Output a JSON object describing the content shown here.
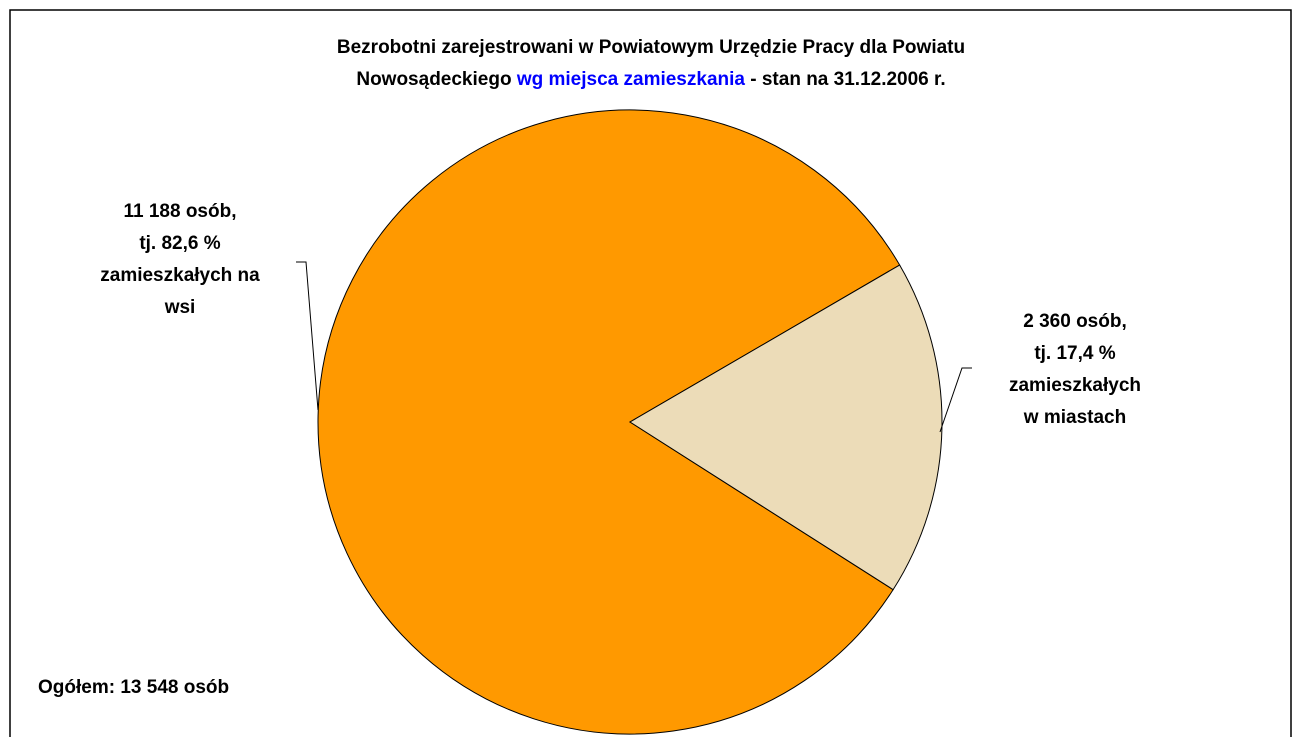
{
  "chart_data": {
    "type": "pie",
    "title": [
      "Bezrobotni zarejestrowani w Powiatowym Urzędzie Pracy dla Powiatu",
      "Nowosądeckiego",
      "wg miejsca zamieszkania",
      "- stan na 31.12.2006 r."
    ],
    "title_highlight_color": "#0000ff",
    "categories": [
      null,
      null
    ],
    "values": [
      11188,
      2360
    ],
    "value_labels": [
      [
        "11 188 osób,",
        "tj. 82,6 %",
        "zamieszkałych na",
        "wsi"
      ],
      [
        "2 360 osób,",
        "tj. 17,4 %",
        "zamieszkałych",
        "w miastach"
      ]
    ],
    "colors": [
      "#ff9900",
      "#ecdcb8"
    ],
    "annotation": "Ogółem: 13 548 osób"
  }
}
